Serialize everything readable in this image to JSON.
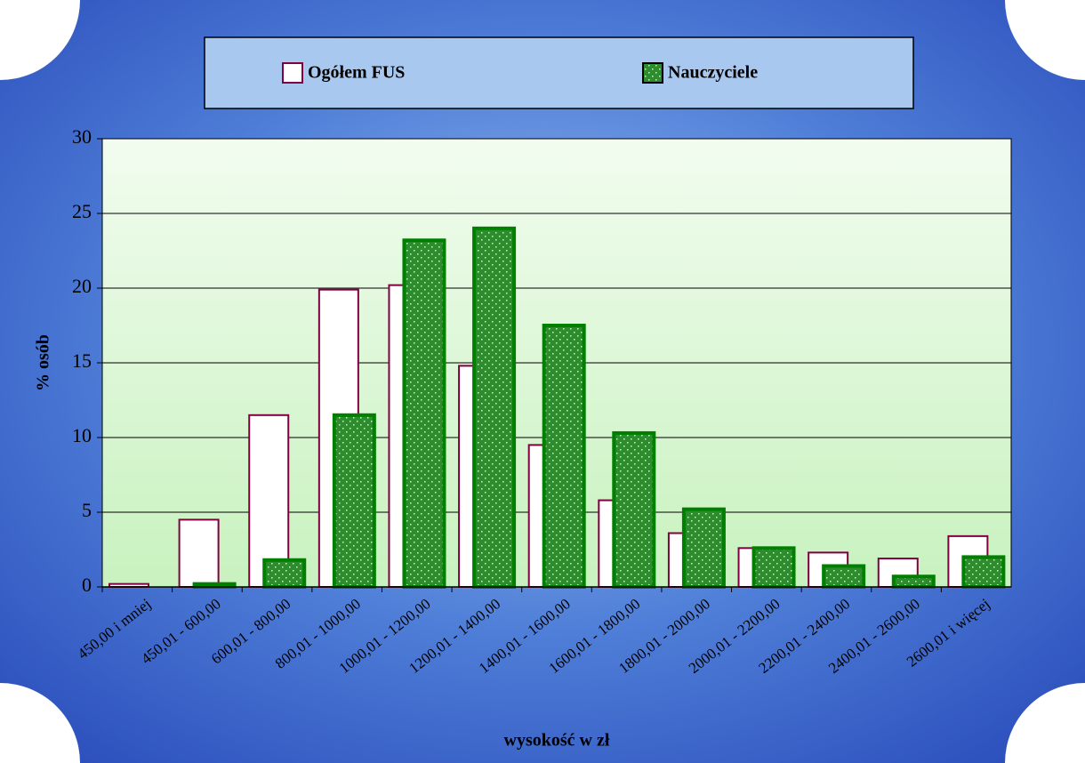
{
  "chart_data": {
    "type": "bar",
    "xlabel": "wysokość w zł",
    "ylabel": "% osób",
    "categories": [
      "450,00 i mniej",
      "450,01 - 600,00",
      "600,01 - 800,00",
      "800,01 - 1000,00",
      "1000,01 - 1200,00",
      "1200,01 - 1400,00",
      "1400,01 - 1600,00",
      "1600,01 - 1800,00",
      "1800,01 - 2000,00",
      "2000,01 - 2200,00",
      "2200,01 - 2400,00",
      "2400,01 - 2600,00",
      "2600,01 i więcej"
    ],
    "series": [
      {
        "name": "Ogółem FUS",
        "color": "#ffffff",
        "edgecolor": "#800040",
        "values": [
          0.2,
          4.5,
          11.5,
          19.9,
          20.2,
          14.8,
          9.5,
          5.8,
          3.6,
          2.6,
          2.3,
          1.9,
          3.4
        ]
      },
      {
        "name": "Nauczyciele",
        "color": "#2e8b2e",
        "edgecolor": "#008000",
        "values": [
          0,
          0.2,
          1.8,
          11.5,
          23.2,
          24.0,
          17.5,
          10.3,
          5.2,
          2.6,
          1.4,
          0.7,
          2.0
        ]
      }
    ],
    "ylim": [
      0,
      30
    ],
    "yticks": [
      0,
      5,
      10,
      15,
      20,
      25,
      30
    ],
    "grid": true,
    "legend": "top"
  }
}
